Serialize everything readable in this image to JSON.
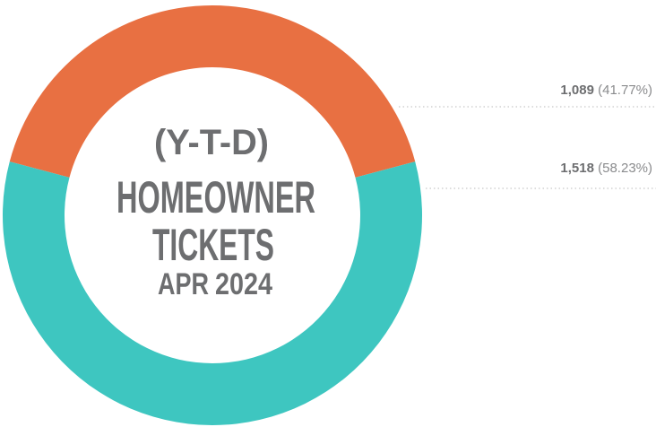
{
  "chart_data": {
    "type": "donut",
    "title_lines": [
      "(Y-T-D)",
      "HOMEOWNER",
      "TICKETS"
    ],
    "month": "APR",
    "year": "2024",
    "values": [
      1089,
      1518
    ],
    "value_labels": [
      "1,089",
      "1,518"
    ],
    "percentages": [
      41.77,
      58.23
    ],
    "percentage_labels": [
      "(41.77%)",
      "(58.23%)"
    ],
    "colors": [
      "#e87042",
      "#3ec6c0"
    ],
    "year_color": "#a8d36a"
  }
}
